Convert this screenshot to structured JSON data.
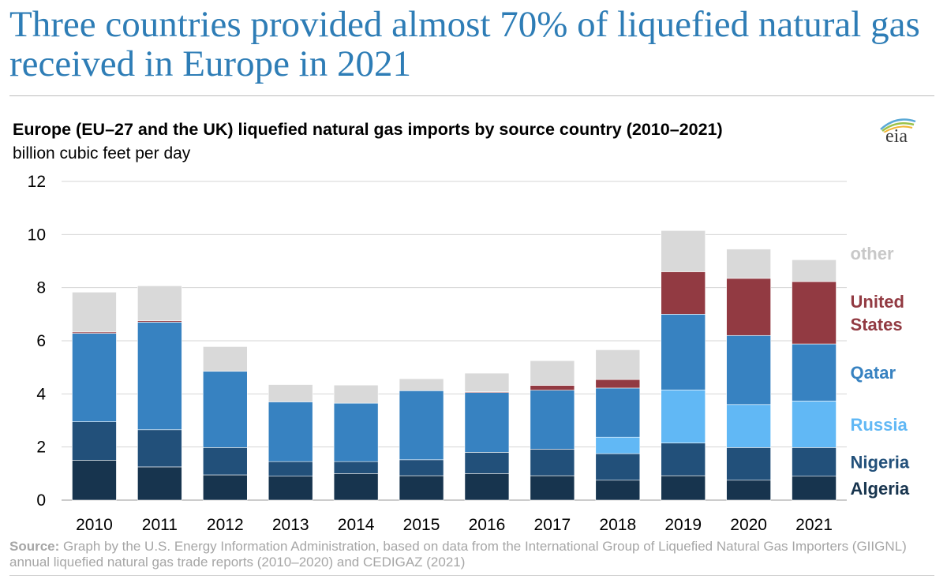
{
  "headline": "Three countries provided almost 70% of liquefied natural gas received in Europe in 2021",
  "logo_text": "eia",
  "source_label": "Source:",
  "source_text": "Graph by the U.S. Energy Information Administration, based on data from the International Group of Liquefied Natural Gas Importers (GIIGNL) annual liquefied natural gas trade reports (2010–2020) and CEDIGAZ (2021)",
  "chart_data": {
    "type": "bar",
    "stacked": true,
    "title": "Europe (EU–27 and the UK) liquefied natural gas imports by source country (2010–2021)",
    "subtitle": "billion cubic feet per day",
    "categories": [
      "2010",
      "2011",
      "2012",
      "2013",
      "2014",
      "2015",
      "2016",
      "2017",
      "2018",
      "2019",
      "2020",
      "2021"
    ],
    "ylim": [
      0,
      12
    ],
    "yticks": [
      "0",
      "2",
      "4",
      "6",
      "8",
      "10",
      "12"
    ],
    "grid": true,
    "legend": "right, labels stacked beside last bar",
    "series": [
      {
        "name": "Algeria",
        "color": "#17344e",
        "values": [
          1.5,
          1.25,
          0.95,
          0.9,
          1.0,
          0.92,
          1.0,
          0.92,
          0.75,
          0.92,
          0.75,
          0.9
        ]
      },
      {
        "name": "Nigeria",
        "color": "#22507a",
        "values": [
          1.45,
          1.4,
          1.03,
          0.55,
          0.45,
          0.6,
          0.8,
          1.0,
          1.0,
          1.23,
          1.23,
          1.08
        ]
      },
      {
        "name": "Russia",
        "color": "#61b8f5",
        "values": [
          0,
          0,
          0,
          0,
          0,
          0,
          0,
          0,
          0.62,
          2.0,
          1.62,
          1.75
        ]
      },
      {
        "name": "Qatar",
        "color": "#3782c1",
        "values": [
          3.33,
          4.05,
          2.87,
          2.25,
          2.2,
          2.6,
          2.25,
          2.22,
          1.85,
          2.85,
          2.6,
          2.15
        ]
      },
      {
        "name": "United States",
        "color": "#923a42",
        "values": [
          0.05,
          0.05,
          0,
          0,
          0,
          0,
          0.03,
          0.18,
          0.32,
          1.6,
          2.15,
          2.35
        ]
      },
      {
        "name": "other",
        "color": "#d9d9d9",
        "values": [
          1.5,
          1.32,
          0.93,
          0.65,
          0.68,
          0.45,
          0.7,
          0.93,
          1.12,
          1.55,
          1.1,
          0.82
        ]
      }
    ]
  }
}
